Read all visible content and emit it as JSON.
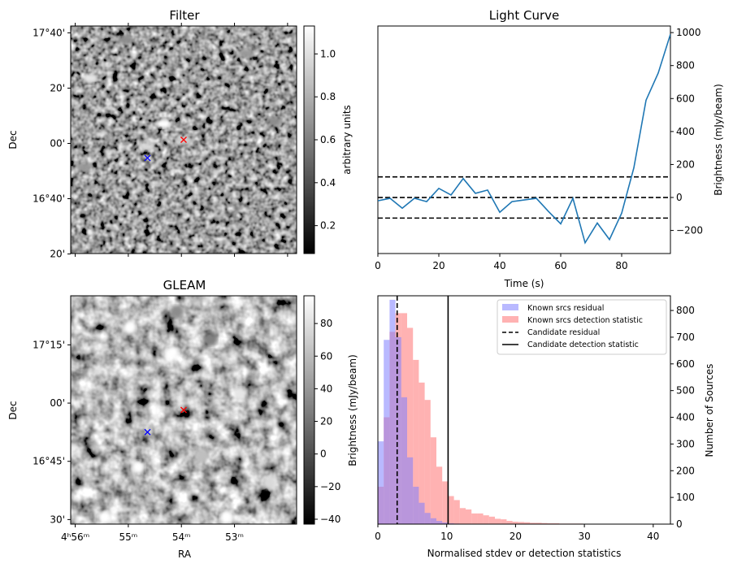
{
  "chart_data": [
    {
      "type": "heatmap",
      "title": "Filter",
      "ylabel": "Dec",
      "y_ticks": [
        "17°40'",
        "20'",
        "00'",
        "16°40'",
        "20'"
      ],
      "colorbar": {
        "label": "arbitrary units",
        "range": [
          0.07,
          1.13
        ],
        "ticks": [
          0.2,
          0.4,
          0.6,
          0.8,
          1.0
        ],
        "tick_labels": [
          "0.2",
          "0.4",
          "0.6",
          "0.8",
          "1.0"
        ]
      },
      "blobs": [
        {
          "x": 0.09,
          "y": 0.23,
          "v": 0.9
        },
        {
          "x": 0.41,
          "y": 0.43,
          "v": 1.0
        },
        {
          "x": 0.34,
          "y": 0.53,
          "v": 0.85
        },
        {
          "x": 0.5,
          "y": 0.5,
          "v": 0.8
        },
        {
          "x": 0.78,
          "y": 0.12,
          "v": 0.6
        },
        {
          "x": 0.06,
          "y": 0.62,
          "v": 0.6
        },
        {
          "x": 0.24,
          "y": 0.06,
          "v": 0.55
        },
        {
          "x": 0.9,
          "y": 0.42,
          "v": 0.55
        }
      ],
      "markers": [
        {
          "color": "#ff0000",
          "x": 0.5,
          "y": 0.5
        },
        {
          "color": "#0000ff",
          "x": 0.34,
          "y": 0.58
        }
      ]
    },
    {
      "type": "line",
      "title": "Light Curve",
      "xlabel": "Time (s)",
      "ylabel": "Brightness (mJy/beam)",
      "xlim": [
        0,
        96
      ],
      "ylim": [
        -340,
        1040
      ],
      "x_ticks": [
        0,
        20,
        40,
        60,
        80
      ],
      "y_ticks": [
        -200,
        0,
        200,
        400,
        600,
        800,
        1000
      ],
      "series": [
        {
          "color": "#1f77b4",
          "x": [
            0,
            4,
            8,
            12,
            16,
            20,
            24,
            28,
            32,
            36,
            40,
            44,
            48,
            52,
            56,
            60,
            64,
            68,
            72,
            76,
            80,
            84,
            88,
            92,
            96
          ],
          "values": [
            -20,
            -5,
            -65,
            -5,
            -25,
            55,
            15,
            115,
            25,
            45,
            -90,
            -25,
            -15,
            -5,
            -85,
            -160,
            -5,
            -275,
            -155,
            -255,
            -95,
            180,
            590,
            755,
            990
          ]
        }
      ],
      "hlines": [
        125,
        0,
        -125
      ]
    },
    {
      "type": "heatmap",
      "title": "GLEAM",
      "xlabel": "RA",
      "ylabel": "Dec",
      "x_ticks": [
        "4ʰ56ᵐ",
        "55ᵐ",
        "54ᵐ",
        "53ᵐ"
      ],
      "y_ticks": [
        "17°15'",
        "00'",
        "16°45'",
        "30'"
      ],
      "colorbar": {
        "label": "Brightness (mJy/beam)",
        "range": [
          -43,
          97
        ],
        "ticks": [
          -40,
          -20,
          0,
          20,
          40,
          60,
          80
        ],
        "tick_labels": [
          "−40",
          "−20",
          "0",
          "20",
          "40",
          "60",
          "80"
        ]
      },
      "blobs": [
        {
          "x": 0.26,
          "y": 0.14,
          "v": 1.0
        },
        {
          "x": 0.45,
          "y": 0.25,
          "v": 1.0
        },
        {
          "x": 0.3,
          "y": 0.75,
          "v": 1.0
        },
        {
          "x": 0.15,
          "y": 0.97,
          "v": 1.0
        },
        {
          "x": 0.69,
          "y": 0.97,
          "v": 1.0
        },
        {
          "x": 0.75,
          "y": 0.43,
          "v": 0.9
        },
        {
          "x": 0.58,
          "y": 0.7,
          "v": 0.75
        },
        {
          "x": 0.88,
          "y": 0.82,
          "v": 0.85
        },
        {
          "x": 0.47,
          "y": 0.07,
          "v": 0.55
        },
        {
          "x": 0.62,
          "y": 0.19,
          "v": 0.5
        }
      ],
      "markers": [
        {
          "color": "#ff0000",
          "x": 0.5,
          "y": 0.5
        },
        {
          "color": "#0000ff",
          "x": 0.34,
          "y": 0.597
        }
      ]
    },
    {
      "type": "bar",
      "xlabel": "Normalised stdev or detection statistics",
      "ylabel": "Number of Sources",
      "xlim": [
        0,
        42.5
      ],
      "ylim": [
        0,
        855
      ],
      "x_ticks": [
        0,
        10,
        20,
        30,
        40
      ],
      "y_ticks": [
        0,
        100,
        200,
        300,
        400,
        500,
        600,
        700,
        800
      ],
      "bin_width": 0.85,
      "series": [
        {
          "name": "Known srcs residual",
          "color": "#7f7fff",
          "values": [
            310,
            690,
            840,
            700,
            475,
            250,
            140,
            80,
            42,
            22,
            12,
            6,
            3,
            2
          ]
        },
        {
          "name": "Known srcs detection statistic",
          "color": "#ff7f7f",
          "values": [
            140,
            400,
            720,
            790,
            790,
            735,
            615,
            530,
            465,
            325,
            215,
            160,
            105,
            90,
            60,
            55,
            40,
            40,
            33,
            28,
            20,
            18,
            12,
            9,
            8,
            7,
            5,
            5,
            4,
            3,
            3,
            2,
            2,
            2,
            2,
            1,
            1,
            1,
            1,
            1,
            1,
            1,
            1,
            1,
            1,
            1,
            1,
            1,
            1,
            1
          ]
        }
      ],
      "vlines": [
        {
          "name": "Candidate residual",
          "x": 2.8,
          "style": "dashed"
        },
        {
          "name": "Candidate detection statistic",
          "x": 10.2,
          "style": "solid"
        }
      ]
    }
  ]
}
